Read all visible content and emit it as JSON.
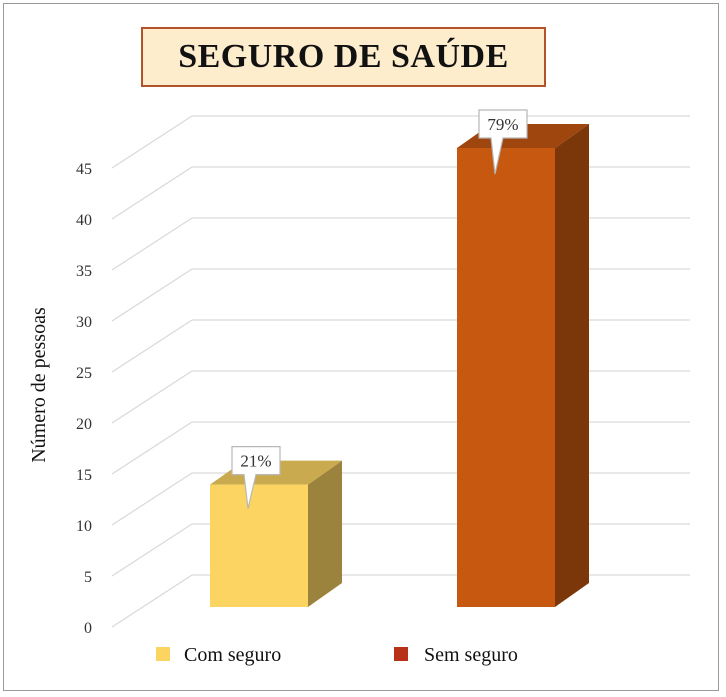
{
  "chart_data": {
    "type": "bar",
    "title": "SEGURO DE SAÚDE",
    "ylabel": "Número de pessoas",
    "xlabel": "",
    "ylim": [
      0,
      45
    ],
    "yticks": [
      0,
      5,
      10,
      15,
      20,
      25,
      30,
      35,
      40,
      45
    ],
    "grid": true,
    "legend": "bottom",
    "three_d": true,
    "series": [
      {
        "name": "Com seguro",
        "value": 12,
        "label": "21%",
        "color": "#fcd462"
      },
      {
        "name": "Sem seguro",
        "value": 45,
        "label": "79%",
        "color": "#c65810"
      }
    ]
  }
}
